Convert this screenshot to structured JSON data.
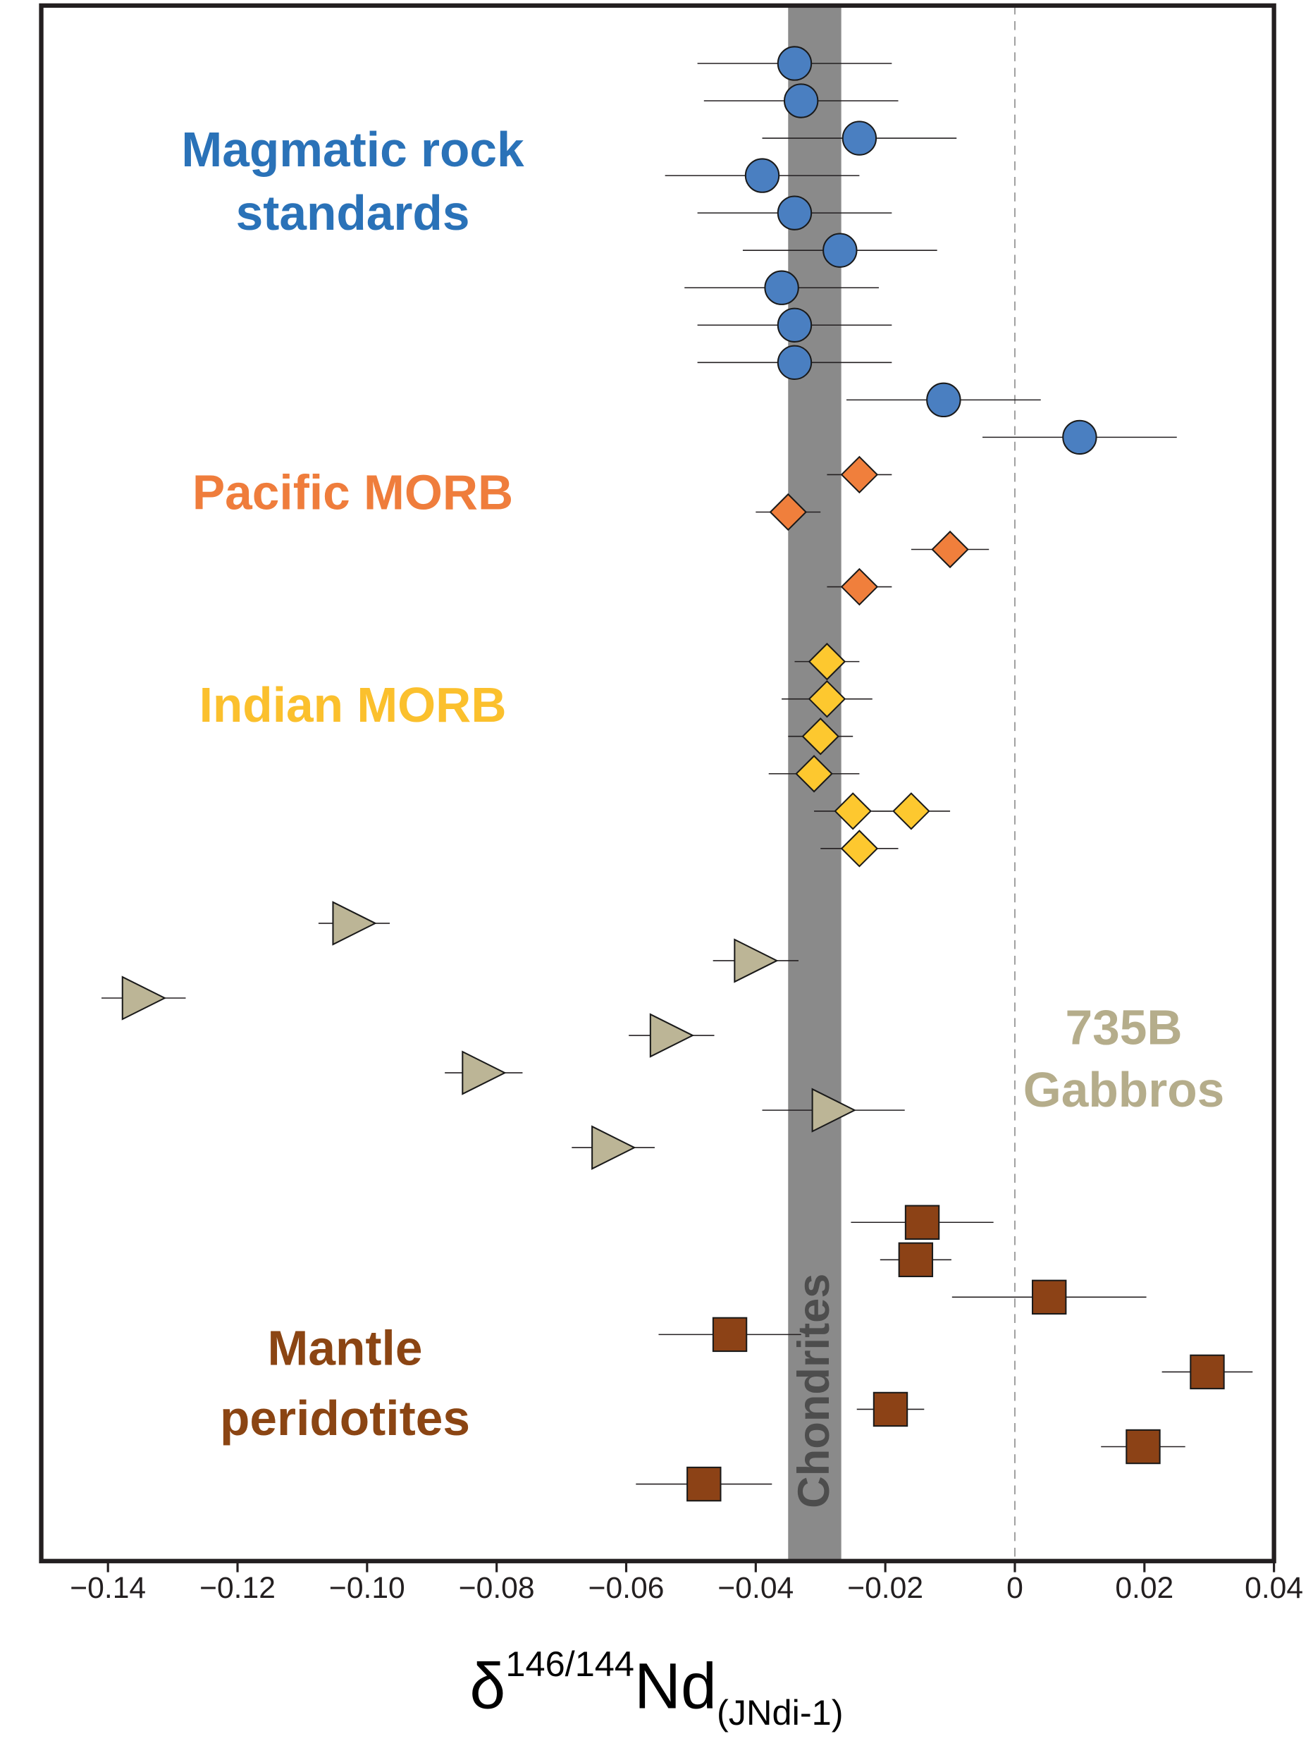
{
  "chart_data": {
    "type": "dot-errorbar",
    "xlabel": {
      "symbol": "δ",
      "sup": "146/144",
      "main": "Nd",
      "sub": "(JNdi-1)"
    },
    "xlim": [
      -0.1503,
      0.04
    ],
    "xticks": [
      {
        "value": -0.14,
        "label": "−0.14"
      },
      {
        "value": -0.12,
        "label": "−0.12"
      },
      {
        "value": -0.1,
        "label": "−0.10"
      },
      {
        "value": -0.08,
        "label": "−0.08"
      },
      {
        "value": -0.06,
        "label": "−0.06"
      },
      {
        "value": -0.04,
        "label": "−0.04"
      },
      {
        "value": -0.02,
        "label": "−0.02"
      },
      0,
      0.02,
      0.04
    ],
    "reference_line": 0,
    "band": {
      "label": "Chondrites",
      "range": [
        -0.035,
        -0.0268
      ],
      "color": "#8a8a8a",
      "label_color": "#4d4d4d"
    },
    "series": [
      {
        "name": [
          "Magmatic rock",
          "standards"
        ],
        "marker": "circle",
        "color": "#4a7fc1",
        "label_color": "#2a72b8",
        "values": [
          -0.034,
          -0.033,
          -0.024,
          -0.039,
          -0.034,
          -0.027,
          -0.036,
          -0.034,
          -0.034,
          -0.011,
          0.01
        ],
        "errors": [
          0.015,
          0.015,
          0.015,
          0.015,
          0.015,
          0.015,
          0.015,
          0.015,
          0.015,
          0.015,
          0.015
        ]
      },
      {
        "name": [
          "Pacific MORB"
        ],
        "marker": "diamond",
        "color": "#f07f3c",
        "label_color": "#ef7d3c",
        "values": [
          -0.024,
          -0.035,
          -0.01,
          -0.024
        ],
        "errors": [
          0.005,
          0.005,
          0.006,
          0.005
        ]
      },
      {
        "name": [
          "Indian MORB"
        ],
        "marker": "diamond",
        "color": "#fdc82f",
        "label_color": "#fbc02d",
        "values": [
          -0.029,
          -0.029,
          -0.03,
          -0.031,
          -0.025,
          -0.016,
          -0.024
        ],
        "errors": [
          0.005,
          0.007,
          0.005,
          0.007,
          0.006,
          0.006,
          0.006
        ]
      },
      {
        "name": [
          "735B",
          "Gabbros"
        ],
        "marker": "triangle",
        "color": "#bcb596",
        "label_color": "#b5ad8b",
        "values": [
          -0.102,
          -0.04,
          -0.1345,
          -0.053,
          -0.082,
          -0.028,
          -0.062
        ],
        "errors": [
          0.0055,
          0.0066,
          0.0065,
          0.0066,
          0.006,
          0.011,
          0.0064
        ]
      },
      {
        "name": [
          "Mantle",
          "peridotites"
        ],
        "marker": "square",
        "color": "#8c4216",
        "label_color": "#8b4513",
        "values": [
          -0.0143,
          -0.0153,
          0.0053,
          -0.044,
          0.0297,
          -0.0192,
          0.0198,
          -0.048
        ],
        "errors": [
          0.011,
          0.0055,
          0.015,
          0.011,
          0.007,
          0.0052,
          0.0065,
          0.0105
        ]
      }
    ]
  }
}
